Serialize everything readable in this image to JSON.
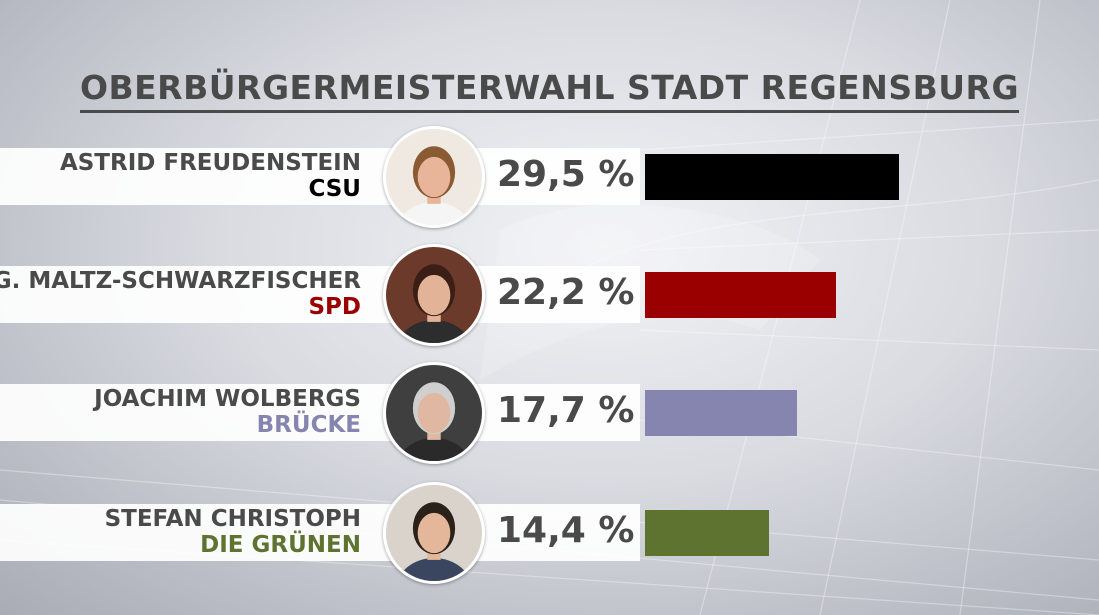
{
  "title": "OBERBÜRGERMEISTERWAHL STADT REGENSBURG",
  "chart_data": {
    "type": "bar",
    "orientation": "horizontal",
    "title": "OBERBÜRGERMEISTERWAHL STADT REGENSBURG",
    "categories": [
      "ASTRID FREUDENSTEIN",
      "G. MALTZ-SCHWARZFISCHER",
      "JOACHIM WOLBERGS",
      "STEFAN CHRISTOPH"
    ],
    "parties": [
      "CSU",
      "SPD",
      "BRÜCKE",
      "DIE GRÜNEN"
    ],
    "values": [
      29.5,
      22.2,
      17.7,
      14.4
    ],
    "value_labels": [
      "29,5 %",
      "22,2 %",
      "17,7 %",
      "14,4 %"
    ],
    "colors": [
      "#000000",
      "#9b0000",
      "#8585b0",
      "#5f7330"
    ],
    "xlabel": "",
    "ylabel": ""
  },
  "candidates": [
    {
      "name": "ASTRID FREUDENSTEIN",
      "party": "CSU",
      "party_color": "#000000",
      "pct_label": "29,5 %",
      "avatar": "portrait-icon"
    },
    {
      "name": "G. MALTZ-SCHWARZFISCHER",
      "party": "SPD",
      "party_color": "#9b0000",
      "pct_label": "22,2 %",
      "avatar": "portrait-icon"
    },
    {
      "name": "JOACHIM WOLBERGS",
      "party": "BRÜCKE",
      "party_color": "#8585b0",
      "pct_label": "17,7 %",
      "avatar": "portrait-icon"
    },
    {
      "name": "STEFAN CHRISTOPH",
      "party": "DIE GRÜNEN",
      "party_color": "#5f7330",
      "pct_label": "14,4 %",
      "avatar": "portrait-icon"
    }
  ]
}
